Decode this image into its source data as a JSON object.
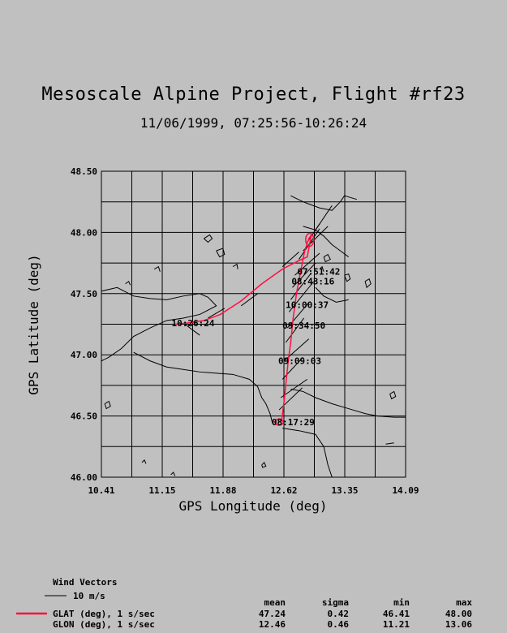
{
  "colors": {
    "background": "#c0c0c0",
    "track": "#ff1040",
    "grid": "#000000"
  },
  "chart_data": {
    "type": "line",
    "title": "Mesoscale Alpine Project, Flight #rf23",
    "subtitle": "11/06/1999, 07:25:56-10:26:24",
    "xlabel": "GPS Longitude (deg)",
    "ylabel": "GPS Latitude (deg)",
    "xlim": [
      10.41,
      14.09
    ],
    "ylim": [
      46.0,
      48.5
    ],
    "grid": true,
    "x_tick_labels": [
      "10.41",
      "11.15",
      "11.88",
      "12.62",
      "13.35",
      "14.09"
    ],
    "y_tick_labels": [
      "46.00",
      "46.50",
      "47.00",
      "47.50",
      "48.00",
      "48.50"
    ],
    "series": [
      {
        "name": "GLAT (deg), 1 s/sec",
        "color": "#ff1040",
        "points": [
          [
            12.55,
            46.45
          ],
          [
            12.59,
            46.46
          ],
          [
            12.62,
            46.62
          ],
          [
            12.64,
            46.75
          ],
          [
            12.67,
            46.95
          ],
          [
            12.7,
            47.1
          ],
          [
            12.73,
            47.3
          ],
          [
            12.77,
            47.5
          ],
          [
            12.82,
            47.68
          ],
          [
            12.87,
            47.85
          ],
          [
            12.92,
            47.95
          ],
          [
            12.95,
            47.98
          ],
          [
            12.9,
            47.8
          ],
          [
            12.8,
            47.77
          ],
          [
            12.6,
            47.7
          ],
          [
            12.35,
            47.58
          ],
          [
            12.1,
            47.44
          ],
          [
            11.85,
            47.33
          ],
          [
            11.65,
            47.28
          ],
          [
            11.45,
            47.26
          ],
          [
            11.3,
            47.25
          ]
        ]
      }
    ],
    "annotations": [
      {
        "text": "07:51:42",
        "x": 12.75,
        "y": 47.68
      },
      {
        "text": "08:43:16",
        "x": 12.68,
        "y": 47.6
      },
      {
        "text": "10:00:37",
        "x": 12.61,
        "y": 47.41
      },
      {
        "text": "09:34:50",
        "x": 12.57,
        "y": 47.24
      },
      {
        "text": "09:09:03",
        "x": 12.52,
        "y": 46.95
      },
      {
        "text": "08:17:29",
        "x": 12.44,
        "y": 46.45
      },
      {
        "text": "10:26:24",
        "x": 11.23,
        "y": 47.26
      }
    ],
    "wind_vectors": [
      [
        12.95,
        47.97,
        0.25,
        0.25
      ],
      [
        12.9,
        47.92,
        0.15,
        0.15
      ],
      [
        12.85,
        47.85,
        0.3,
        0.2
      ],
      [
        12.8,
        47.78,
        0.25,
        0.25
      ],
      [
        12.75,
        47.65,
        0.3,
        0.18
      ],
      [
        12.72,
        47.55,
        0.28,
        0.2
      ],
      [
        12.7,
        47.45,
        0.25,
        0.22
      ],
      [
        12.68,
        47.35,
        0.3,
        0.25
      ],
      [
        12.66,
        47.22,
        0.25,
        0.2
      ],
      [
        12.64,
        47.1,
        0.22,
        0.2
      ],
      [
        12.62,
        46.95,
        0.3,
        0.18
      ],
      [
        12.6,
        46.8,
        0.25,
        0.18
      ],
      [
        12.58,
        46.65,
        0.32,
        0.15
      ],
      [
        12.56,
        46.55,
        0.28,
        0.18
      ],
      [
        12.1,
        47.4,
        0.2,
        0.1
      ],
      [
        11.7,
        47.3,
        0.2,
        0.08
      ],
      [
        11.4,
        47.26,
        0.2,
        -0.1
      ],
      [
        12.6,
        47.72,
        0.2,
        0.12
      ]
    ],
    "coastline_paths": [
      [
        [
          10.41,
          47.52
        ],
        [
          10.6,
          47.55
        ],
        [
          10.8,
          47.48
        ],
        [
          11.0,
          47.46
        ],
        [
          11.2,
          47.45
        ],
        [
          11.4,
          47.48
        ],
        [
          11.6,
          47.5
        ],
        [
          11.7,
          47.47
        ],
        [
          11.8,
          47.4
        ],
        [
          11.6,
          47.33
        ],
        [
          11.4,
          47.3
        ],
        [
          11.2,
          47.28
        ],
        [
          11.0,
          47.22
        ],
        [
          10.8,
          47.15
        ],
        [
          10.65,
          47.05
        ],
        [
          10.5,
          46.98
        ],
        [
          10.41,
          46.95
        ]
      ],
      [
        [
          10.8,
          47.02
        ],
        [
          11.0,
          46.95
        ],
        [
          11.2,
          46.9
        ],
        [
          11.4,
          46.88
        ],
        [
          11.6,
          46.86
        ],
        [
          11.8,
          46.85
        ],
        [
          12.0,
          46.84
        ],
        [
          12.2,
          46.8
        ],
        [
          12.3,
          46.74
        ],
        [
          12.35,
          46.65
        ],
        [
          12.4,
          46.6
        ],
        [
          12.45,
          46.52
        ],
        [
          12.48,
          46.44
        ]
      ],
      [
        [
          12.7,
          48.3
        ],
        [
          12.85,
          48.25
        ],
        [
          13.05,
          48.2
        ],
        [
          13.2,
          48.18
        ],
        [
          13.3,
          48.25
        ],
        [
          13.35,
          48.3
        ],
        [
          13.5,
          48.27
        ]
      ],
      [
        [
          12.85,
          48.05
        ],
        [
          13.0,
          48.02
        ],
        [
          13.1,
          47.97
        ],
        [
          13.2,
          47.9
        ],
        [
          13.3,
          47.85
        ],
        [
          13.4,
          47.8
        ]
      ],
      [
        [
          12.7,
          46.72
        ],
        [
          12.85,
          46.7
        ],
        [
          13.0,
          46.65
        ],
        [
          13.2,
          46.6
        ],
        [
          13.4,
          46.56
        ],
        [
          13.6,
          46.52
        ],
        [
          13.75,
          46.5
        ],
        [
          13.95,
          46.49
        ],
        [
          14.09,
          46.49
        ]
      ],
      [
        [
          12.6,
          46.4
        ],
        [
          12.8,
          46.38
        ],
        [
          13.0,
          46.35
        ],
        [
          13.1,
          46.25
        ],
        [
          13.15,
          46.1
        ],
        [
          13.2,
          46.0
        ]
      ],
      [
        [
          13.0,
          47.55
        ],
        [
          13.1,
          47.48
        ],
        [
          13.25,
          47.43
        ],
        [
          13.4,
          47.45
        ]
      ],
      [
        [
          11.65,
          47.95
        ],
        [
          11.72,
          47.98
        ],
        [
          11.75,
          47.95
        ],
        [
          11.7,
          47.92
        ],
        [
          11.65,
          47.95
        ]
      ],
      [
        [
          11.05,
          47.7
        ],
        [
          11.1,
          47.72
        ],
        [
          11.12,
          47.68
        ]
      ],
      [
        [
          11.8,
          47.85
        ],
        [
          11.88,
          47.87
        ],
        [
          11.9,
          47.82
        ],
        [
          11.84,
          47.8
        ],
        [
          11.8,
          47.85
        ]
      ],
      [
        [
          12.0,
          47.72
        ],
        [
          12.05,
          47.74
        ],
        [
          12.06,
          47.7
        ]
      ],
      [
        [
          13.35,
          47.65
        ],
        [
          13.4,
          47.66
        ],
        [
          13.42,
          47.62
        ],
        [
          13.38,
          47.6
        ],
        [
          13.35,
          47.65
        ]
      ],
      [
        [
          13.6,
          47.6
        ],
        [
          13.65,
          47.62
        ],
        [
          13.67,
          47.58
        ],
        [
          13.62,
          47.55
        ],
        [
          13.6,
          47.6
        ]
      ],
      [
        [
          13.1,
          47.8
        ],
        [
          13.15,
          47.82
        ],
        [
          13.18,
          47.78
        ],
        [
          13.12,
          47.76
        ],
        [
          13.1,
          47.8
        ]
      ],
      [
        [
          11.25,
          46.02
        ],
        [
          11.28,
          46.04
        ],
        [
          11.3,
          46.01
        ]
      ],
      [
        [
          10.9,
          46.12
        ],
        [
          10.93,
          46.14
        ],
        [
          10.95,
          46.11
        ]
      ],
      [
        [
          12.35,
          46.1
        ],
        [
          12.38,
          46.12
        ],
        [
          12.4,
          46.09
        ],
        [
          12.36,
          46.08
        ],
        [
          12.35,
          46.1
        ]
      ],
      [
        [
          13.9,
          46.68
        ],
        [
          13.95,
          46.7
        ],
        [
          13.97,
          46.66
        ],
        [
          13.92,
          46.64
        ],
        [
          13.9,
          46.68
        ]
      ],
      [
        [
          13.85,
          46.27
        ],
        [
          13.95,
          46.28
        ]
      ],
      [
        [
          10.45,
          46.6
        ],
        [
          10.5,
          46.62
        ],
        [
          10.52,
          46.58
        ],
        [
          10.47,
          46.56
        ],
        [
          10.45,
          46.6
        ]
      ],
      [
        [
          10.7,
          47.58
        ],
        [
          10.74,
          47.6
        ],
        [
          10.76,
          47.57
        ]
      ],
      [
        [
          13.05,
          47.7
        ],
        [
          13.08,
          47.72
        ],
        [
          13.1,
          47.68
        ]
      ]
    ]
  },
  "legend": {
    "wind_title": "Wind Vectors",
    "wind_scale_label": "10 m/s",
    "stats_headers": [
      "mean",
      "sigma",
      "min",
      "max"
    ],
    "rows": [
      {
        "label": "GLAT (deg), 1 s/sec",
        "mean": "47.24",
        "sigma": "0.42",
        "min": "46.41",
        "max": "48.00",
        "show_line": true
      },
      {
        "label": "GLON (deg), 1 s/sec",
        "mean": "12.46",
        "sigma": "0.46",
        "min": "11.21",
        "max": "13.06",
        "show_line": false
      }
    ]
  }
}
